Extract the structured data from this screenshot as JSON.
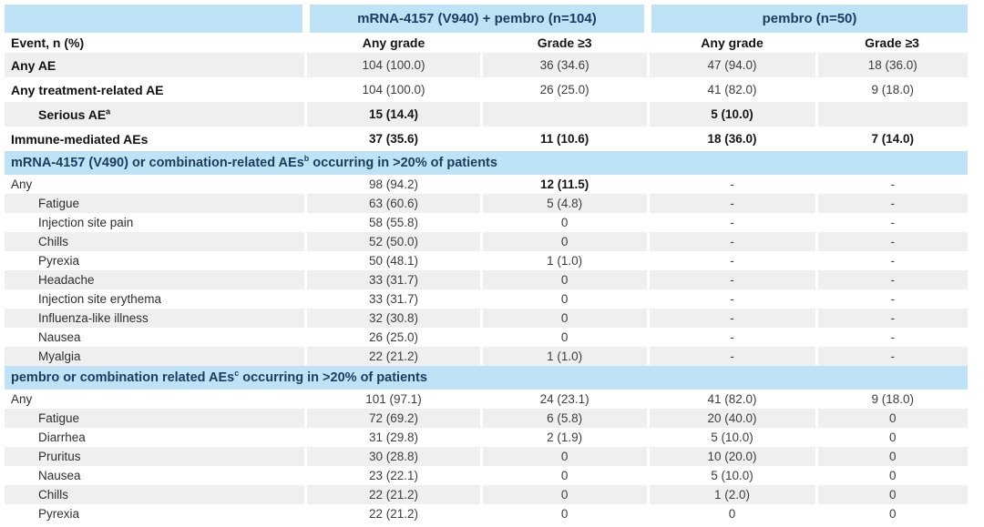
{
  "colors": {
    "header_bg": "#bee3f6",
    "header_text": "#1c3c5e",
    "stripe_bg": "#efefef"
  },
  "table": {
    "group_headers": [
      "mRNA-4157 (V940) + pembro (n=104)",
      "pembro (n=50)"
    ],
    "column_headers": [
      "Event, n (%)",
      "Any grade",
      "Grade ≥3",
      "Any grade",
      "Grade ≥3"
    ],
    "rows": [
      {
        "type": "data",
        "label": "Any AE",
        "indent": 0,
        "bold_label": 1,
        "shaded": 1,
        "size": "lg",
        "values": [
          "104 (100.0)",
          "36 (34.6)",
          "47 (94.0)",
          "18 (36.0)"
        ],
        "bold": [
          0,
          0,
          0,
          0
        ]
      },
      {
        "type": "data",
        "label": "Any treatment-related AE",
        "indent": 0,
        "bold_label": 1,
        "shaded": 0,
        "size": "lg",
        "values": [
          "104 (100.0)",
          "26 (25.0)",
          "41 (82.0)",
          "9 (18.0)"
        ],
        "bold": [
          0,
          0,
          0,
          0
        ]
      },
      {
        "type": "data",
        "label": "Serious AE",
        "sup": "a",
        "indent": 1,
        "bold_label": 1,
        "shaded": 1,
        "size": "lg",
        "values": [
          "15 (14.4)",
          "",
          "5 (10.0)",
          ""
        ],
        "bold": [
          1,
          1,
          1,
          1
        ]
      },
      {
        "type": "data",
        "label": "Immune-mediated AEs",
        "indent": 0,
        "bold_label": 1,
        "shaded": 0,
        "size": "lg",
        "values": [
          "37 (35.6)",
          "11 (10.6)",
          "18 (36.0)",
          "7 (14.0)"
        ],
        "bold": [
          1,
          1,
          1,
          1
        ]
      },
      {
        "type": "section",
        "pre": "mRNA-4157 (V490) or combination-related AEs",
        "sup": "b",
        "post": " occurring in >20% of patients"
      },
      {
        "type": "data",
        "label": "Any",
        "indent": 0,
        "bold_label": 0,
        "shaded": 0,
        "values": [
          "98 (94.2)",
          "12 (11.5)",
          "-",
          "-"
        ],
        "bold": [
          0,
          1,
          0,
          0
        ]
      },
      {
        "type": "data",
        "label": "Fatigue",
        "indent": 1,
        "bold_label": 0,
        "shaded": 1,
        "values": [
          "63 (60.6)",
          "5 (4.8)",
          "-",
          "-"
        ],
        "bold": [
          0,
          0,
          0,
          0
        ]
      },
      {
        "type": "data",
        "label": "Injection site pain",
        "indent": 1,
        "bold_label": 0,
        "shaded": 0,
        "values": [
          "58 (55.8)",
          "0",
          "-",
          "-"
        ],
        "bold": [
          0,
          0,
          0,
          0
        ]
      },
      {
        "type": "data",
        "label": "Chills",
        "indent": 1,
        "bold_label": 0,
        "shaded": 1,
        "values": [
          "52 (50.0)",
          "0",
          "-",
          "-"
        ],
        "bold": [
          0,
          0,
          0,
          0
        ]
      },
      {
        "type": "data",
        "label": "Pyrexia",
        "indent": 1,
        "bold_label": 0,
        "shaded": 0,
        "values": [
          "50 (48.1)",
          "1 (1.0)",
          "-",
          "-"
        ],
        "bold": [
          0,
          0,
          0,
          0
        ]
      },
      {
        "type": "data",
        "label": "Headache",
        "indent": 1,
        "bold_label": 0,
        "shaded": 1,
        "values": [
          "33 (31.7)",
          "0",
          "-",
          "-"
        ],
        "bold": [
          0,
          0,
          0,
          0
        ]
      },
      {
        "type": "data",
        "label": "Injection site erythema",
        "indent": 1,
        "bold_label": 0,
        "shaded": 0,
        "values": [
          "33 (31.7)",
          "0",
          "-",
          "-"
        ],
        "bold": [
          0,
          0,
          0,
          0
        ]
      },
      {
        "type": "data",
        "label": "Influenza-like illness",
        "indent": 1,
        "bold_label": 0,
        "shaded": 1,
        "values": [
          "32 (30.8)",
          "0",
          "-",
          "-"
        ],
        "bold": [
          0,
          0,
          0,
          0
        ]
      },
      {
        "type": "data",
        "label": "Nausea",
        "indent": 1,
        "bold_label": 0,
        "shaded": 0,
        "values": [
          "26 (25.0)",
          "0",
          "-",
          "-"
        ],
        "bold": [
          0,
          0,
          0,
          0
        ]
      },
      {
        "type": "data",
        "label": "Myalgia",
        "indent": 1,
        "bold_label": 0,
        "shaded": 1,
        "values": [
          "22 (21.2)",
          "1 (1.0)",
          "-",
          "-"
        ],
        "bold": [
          0,
          0,
          0,
          0
        ]
      },
      {
        "type": "section",
        "pre": "pembro or combination related AEs",
        "sup": "c",
        "post": " occurring in >20% of patients"
      },
      {
        "type": "data",
        "label": "Any",
        "indent": 0,
        "bold_label": 0,
        "shaded": 0,
        "values": [
          "101 (97.1)",
          "24 (23.1)",
          "41 (82.0)",
          "9 (18.0)"
        ],
        "bold": [
          0,
          0,
          0,
          0
        ]
      },
      {
        "type": "data",
        "label": "Fatigue",
        "indent": 1,
        "bold_label": 0,
        "shaded": 1,
        "values": [
          "72 (69.2)",
          "6 (5.8)",
          "20 (40.0)",
          "0"
        ],
        "bold": [
          0,
          0,
          0,
          0
        ]
      },
      {
        "type": "data",
        "label": "Diarrhea",
        "indent": 1,
        "bold_label": 0,
        "shaded": 0,
        "values": [
          "31 (29.8)",
          "2 (1.9)",
          "5 (10.0)",
          "0"
        ],
        "bold": [
          0,
          0,
          0,
          0
        ]
      },
      {
        "type": "data",
        "label": "Pruritus",
        "indent": 1,
        "bold_label": 0,
        "shaded": 1,
        "values": [
          "30 (28.8)",
          "0",
          "10 (20.0)",
          "0"
        ],
        "bold": [
          0,
          0,
          0,
          0
        ]
      },
      {
        "type": "data",
        "label": "Nausea",
        "indent": 1,
        "bold_label": 0,
        "shaded": 0,
        "values": [
          "23 (22.1)",
          "0",
          "5 (10.0)",
          "0"
        ],
        "bold": [
          0,
          0,
          0,
          0
        ]
      },
      {
        "type": "data",
        "label": "Chills",
        "indent": 1,
        "bold_label": 0,
        "shaded": 1,
        "values": [
          "22 (21.2)",
          "0",
          "1 (2.0)",
          "0"
        ],
        "bold": [
          0,
          0,
          0,
          0
        ]
      },
      {
        "type": "data",
        "label": "Pyrexia",
        "indent": 1,
        "bold_label": 0,
        "shaded": 0,
        "values": [
          "22 (21.2)",
          "0",
          "0",
          "0"
        ],
        "bold": [
          0,
          0,
          0,
          0
        ]
      }
    ]
  }
}
